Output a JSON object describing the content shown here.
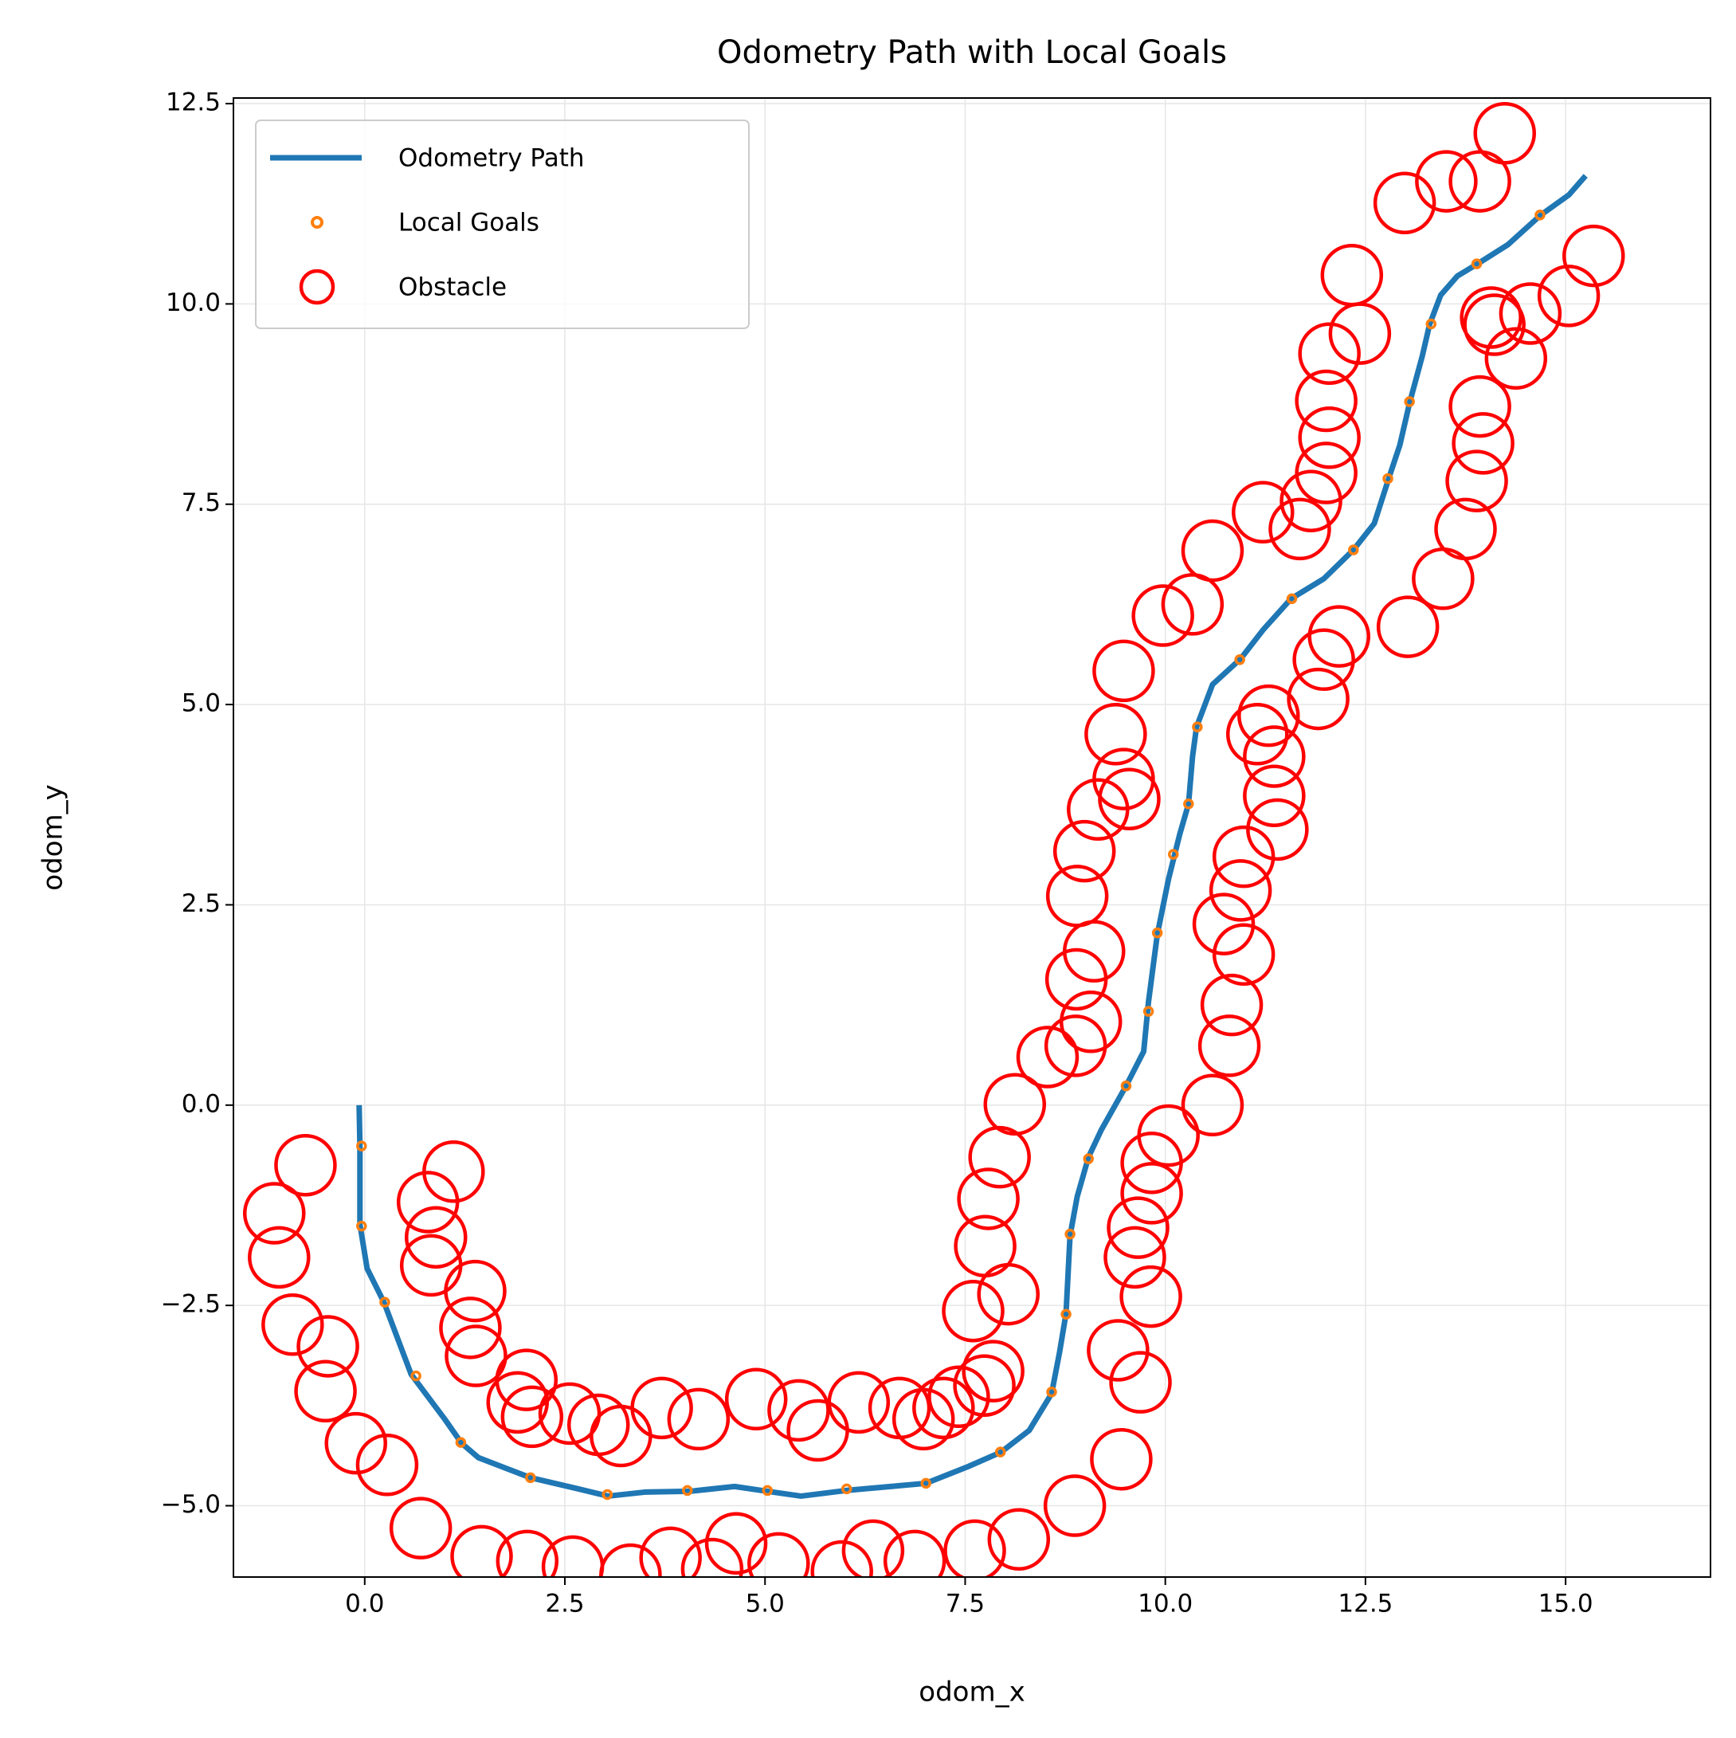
{
  "chart_data": {
    "type": "line",
    "title": "Odometry Path with Local Goals",
    "x_label": "odom_x",
    "y_label": "odom_y",
    "xlim": [
      -1.64,
      16.81
    ],
    "ylim": [
      -5.89,
      12.57
    ],
    "xticks": [
      {
        "value": 0,
        "label": "0.0"
      },
      {
        "value": 2.5,
        "label": "2.5"
      },
      {
        "value": 5,
        "label": "5.0"
      },
      {
        "value": 7.5,
        "label": "7.5"
      },
      {
        "value": 10,
        "label": "10.0"
      },
      {
        "value": 12.5,
        "label": "12.5"
      },
      {
        "value": 15,
        "label": "15.0"
      }
    ],
    "yticks": [
      {
        "value": -5,
        "label": "−5.0"
      },
      {
        "value": -2.5,
        "label": "−2.5"
      },
      {
        "value": 0,
        "label": "0.0"
      },
      {
        "value": 2.5,
        "label": "2.5"
      },
      {
        "value": 5,
        "label": "5.0"
      },
      {
        "value": 7.5,
        "label": "7.5"
      },
      {
        "value": 10,
        "label": "10.0"
      },
      {
        "value": 12.5,
        "label": "12.5"
      }
    ],
    "grid": true,
    "legend": "upper left",
    "series": [
      {
        "name": "Odometry Path",
        "type": "line",
        "color": "#1f77b4",
        "x": [
          -0.07,
          -0.06,
          -0.06,
          0.03,
          0.24,
          0.58,
          1.0,
          1.21,
          1.42,
          2.07,
          2.67,
          3.04,
          3.5,
          4.06,
          4.62,
          5.03,
          5.45,
          6.01,
          6.57,
          7.01,
          7.54,
          7.95,
          8.3,
          8.58,
          8.68,
          8.76,
          8.81,
          8.9,
          9.04,
          9.2,
          9.51,
          9.73,
          9.79,
          9.9,
          10.04,
          10.18,
          10.29,
          10.34,
          10.39,
          10.59,
          10.94,
          11.22,
          11.57,
          11.98,
          12.35,
          12.61,
          12.79,
          12.93,
          13.05,
          13.21,
          13.3,
          13.44,
          13.65,
          13.9,
          14.28,
          14.69,
          15.04,
          15.25
        ],
        "values": [
          0,
          -0.51,
          -1.49,
          -2.04,
          -2.46,
          -3.36,
          -3.92,
          -4.22,
          -4.4,
          -4.65,
          -4.79,
          -4.88,
          -4.83,
          -4.82,
          -4.76,
          -4.82,
          -4.88,
          -4.81,
          -4.76,
          -4.72,
          -4.51,
          -4.33,
          -4.06,
          -3.6,
          -3.08,
          -2.6,
          -1.63,
          -1.14,
          -0.65,
          -0.31,
          0.24,
          0.67,
          1.29,
          2.13,
          2.82,
          3.38,
          3.76,
          4.35,
          4.72,
          5.25,
          5.57,
          5.93,
          6.32,
          6.57,
          6.93,
          7.26,
          7.82,
          8.24,
          8.76,
          9.35,
          9.74,
          10.11,
          10.35,
          10.5,
          10.74,
          11.11,
          11.36,
          11.6
        ]
      },
      {
        "name": "Local Goals",
        "type": "scatter",
        "color": "#ff7f0e",
        "x": [
          -0.04,
          -0.04,
          0.25,
          0.64,
          1.2,
          2.07,
          3.03,
          4.03,
          5.03,
          6.02,
          7.01,
          7.94,
          8.58,
          8.76,
          8.81,
          9.04,
          9.51,
          9.79,
          9.9,
          10.1,
          10.29,
          10.4,
          10.93,
          11.58,
          12.35,
          12.78,
          13.05,
          13.32,
          13.89,
          14.68
        ],
        "values": [
          -0.51,
          -1.51,
          -2.46,
          -3.38,
          -4.21,
          -4.65,
          -4.86,
          -4.81,
          -4.81,
          -4.79,
          -4.72,
          -4.33,
          -3.58,
          -2.61,
          -1.61,
          -0.67,
          0.24,
          1.17,
          2.15,
          3.13,
          3.76,
          4.72,
          5.56,
          6.32,
          6.93,
          7.82,
          8.78,
          9.75,
          10.5,
          11.11
        ]
      },
      {
        "name": "Obstacle",
        "type": "scatter",
        "color": "#ff0000",
        "x": [
          -0.74,
          -1.13,
          -1.07,
          -0.9,
          -0.46,
          -0.49,
          -0.11,
          0.28,
          0.7,
          1.46,
          2.03,
          2.6,
          3.32,
          3.82,
          4.64,
          4.34,
          5.17,
          5.96,
          6.35,
          6.87,
          7.62,
          8.17,
          8.87,
          9.45,
          9.69,
          9.41,
          9.82,
          9.62,
          9.66,
          9.83,
          9.83,
          10.04,
          10.59,
          10.8,
          10.83,
          10.98,
          10.73,
          10.94,
          10.98,
          11.4,
          11.36,
          11.36,
          11.15,
          11.29,
          11.91,
          11.98,
          12.17,
          13.03,
          13.47,
          13.75,
          13.89,
          13.97,
          13.93,
          14.38,
          14.11,
          14.56,
          14.07,
          15.04,
          15.35,
          14.24,
          13.51,
          13.93,
          12.99,
          12.33,
          12.43,
          12.05,
          12.01,
          12.05,
          12.01,
          11.82,
          11.68,
          11.22,
          10.59,
          10.34,
          9.97,
          9.48,
          9.38,
          9.48,
          9.55,
          9.16,
          8.99,
          8.9,
          9.11,
          8.89,
          9.07,
          8.88,
          8.53,
          8.12,
          7.93,
          7.79,
          7.75,
          8.04,
          7.6,
          7.85,
          7.74,
          7.42,
          7.23,
          6.98,
          6.68,
          6.17,
          5.66,
          5.42,
          4.89,
          4.17,
          3.71,
          3.2,
          2.92,
          2.56,
          2.09,
          1.91,
          2.02,
          1.39,
          1.32,
          1.38,
          0.83,
          0.89,
          0.79,
          1.11
        ],
        "values": [
          -0.75,
          -1.35,
          -1.9,
          -2.74,
          -3.01,
          -3.57,
          -4.22,
          -4.49,
          -5.28,
          -5.63,
          -5.69,
          -5.76,
          -5.86,
          -5.65,
          -5.47,
          -5.79,
          -5.72,
          -5.82,
          -5.56,
          -5.69,
          -5.56,
          -5.42,
          -5.0,
          -4.42,
          -3.46,
          -3.06,
          -2.39,
          -1.9,
          -1.53,
          -1.1,
          -0.72,
          -0.38,
          0.0,
          0.74,
          1.25,
          1.88,
          2.26,
          2.68,
          3.1,
          3.44,
          3.86,
          4.35,
          4.63,
          4.86,
          5.07,
          5.56,
          5.85,
          5.97,
          6.57,
          7.19,
          7.79,
          8.26,
          8.72,
          9.32,
          9.74,
          9.88,
          9.83,
          10.1,
          10.6,
          12.13,
          11.53,
          11.53,
          11.26,
          10.36,
          9.63,
          9.38,
          8.79,
          8.33,
          7.89,
          7.54,
          7.19,
          7.4,
          6.92,
          6.25,
          6.11,
          5.42,
          4.63,
          4.07,
          3.82,
          3.69,
          3.17,
          2.61,
          1.92,
          1.57,
          1.04,
          0.74,
          0.6,
          0.01,
          -0.65,
          -1.17,
          -1.76,
          -2.36,
          -2.57,
          -3.32,
          -3.5,
          -3.64,
          -3.78,
          -3.92,
          -3.78,
          -3.71,
          -4.06,
          -3.81,
          -3.67,
          -3.92,
          -3.78,
          -4.13,
          -3.99,
          -3.85,
          -3.89,
          -3.71,
          -3.43,
          -3.13,
          -2.78,
          -2.32,
          -2.0,
          -1.65,
          -1.21,
          -0.83
        ]
      }
    ]
  }
}
